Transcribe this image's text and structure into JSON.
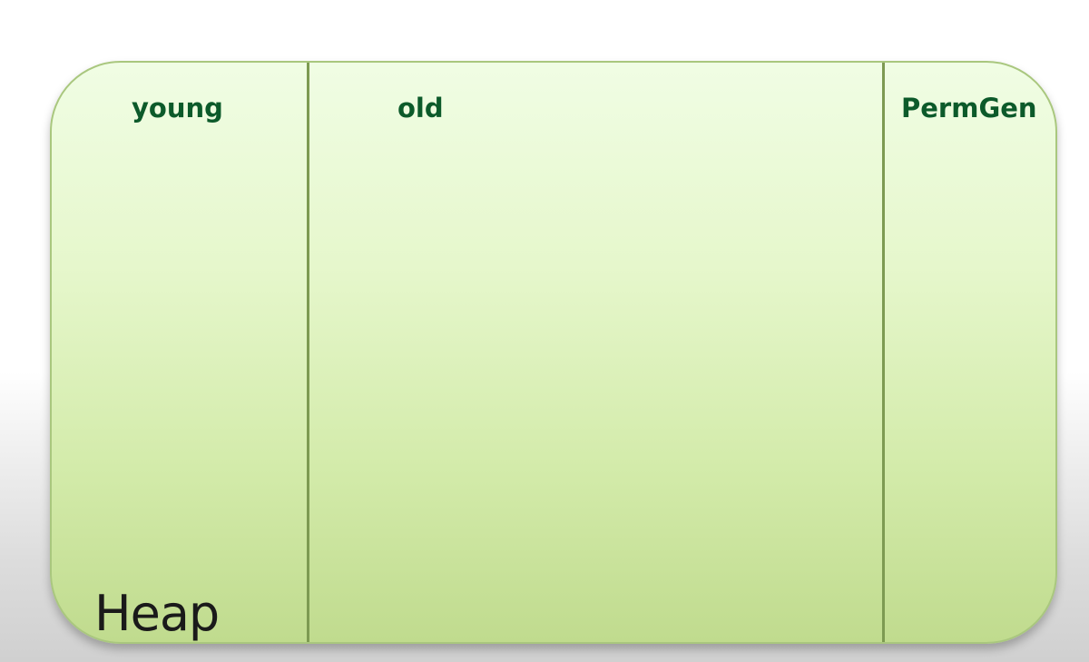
{
  "diagram": {
    "regions": [
      {
        "label": "young"
      },
      {
        "label": "old"
      },
      {
        "label": "PermGen"
      }
    ],
    "caption": "Heap",
    "colors": {
      "fill_top": "#f0fde4",
      "fill_bottom": "#c0db8e",
      "border": "#a9c77e",
      "divider": "#7d9a52",
      "label_text": "#0c5a2a",
      "caption_text": "#1a1a1a"
    }
  }
}
